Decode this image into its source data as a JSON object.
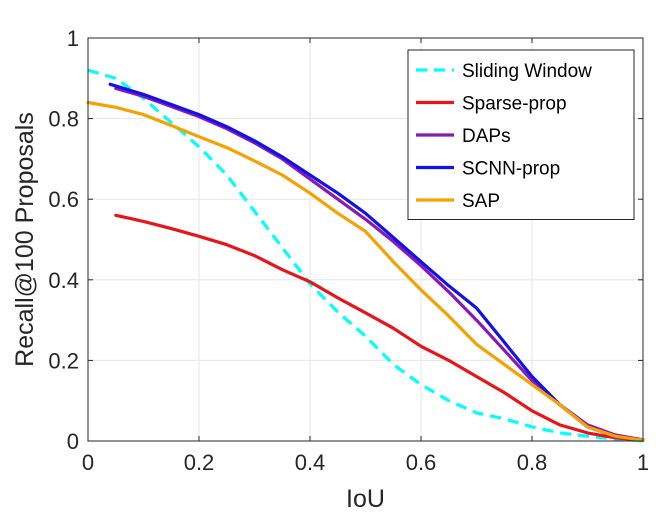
{
  "chart_data": {
    "type": "line",
    "title": "",
    "xlabel": "IoU",
    "ylabel": "Recall@100 Proposals",
    "xlim": [
      0,
      1
    ],
    "ylim": [
      0,
      1
    ],
    "xticks": [
      0,
      0.2,
      0.4,
      0.6,
      0.8,
      1
    ],
    "yticks": [
      0,
      0.2,
      0.4,
      0.6,
      0.8,
      1
    ],
    "xtick_labels": [
      "0",
      "0.2",
      "0.4",
      "0.6",
      "0.8",
      "1"
    ],
    "ytick_labels": [
      "0",
      "0.2",
      "0.4",
      "0.6",
      "0.8",
      "1"
    ],
    "grid": true,
    "legend_position": "top-right",
    "series": [
      {
        "name": "Sliding Window",
        "color": "#00FFFF",
        "dash": "dashed",
        "x": [
          0,
          0.05,
          0.1,
          0.15,
          0.2,
          0.25,
          0.3,
          0.35,
          0.4,
          0.45,
          0.5,
          0.55,
          0.6,
          0.65,
          0.7,
          0.75,
          0.8,
          0.85,
          0.9,
          0.95,
          1.0
        ],
        "y": [
          0.92,
          0.9,
          0.85,
          0.79,
          0.73,
          0.66,
          0.57,
          0.48,
          0.39,
          0.32,
          0.26,
          0.19,
          0.14,
          0.1,
          0.07,
          0.055,
          0.035,
          0.02,
          0.012,
          0.005,
          0.0
        ]
      },
      {
        "name": "Sparse-prop",
        "color": "#E8141A",
        "dash": "solid",
        "x": [
          0.05,
          0.1,
          0.15,
          0.2,
          0.25,
          0.3,
          0.35,
          0.4,
          0.45,
          0.5,
          0.55,
          0.6,
          0.65,
          0.7,
          0.75,
          0.8,
          0.85,
          0.9,
          0.95,
          1.0
        ],
        "y": [
          0.56,
          0.545,
          0.527,
          0.508,
          0.487,
          0.46,
          0.425,
          0.395,
          0.355,
          0.318,
          0.28,
          0.235,
          0.2,
          0.16,
          0.12,
          0.075,
          0.04,
          0.02,
          0.008,
          0.002
        ]
      },
      {
        "name": "DAPs",
        "color": "#8A18B5",
        "dash": "solid",
        "x": [
          0.05,
          0.1,
          0.15,
          0.2,
          0.25,
          0.3,
          0.35,
          0.4,
          0.45,
          0.5,
          0.55,
          0.6,
          0.65,
          0.7,
          0.75,
          0.8,
          0.85,
          0.9,
          0.95,
          1.0
        ],
        "y": [
          0.875,
          0.855,
          0.83,
          0.805,
          0.775,
          0.74,
          0.7,
          0.65,
          0.6,
          0.55,
          0.495,
          0.435,
          0.37,
          0.3,
          0.225,
          0.15,
          0.09,
          0.04,
          0.015,
          0.003
        ]
      },
      {
        "name": "SCNN-prop",
        "color": "#1212E8",
        "dash": "solid",
        "x": [
          0.04,
          0.1,
          0.15,
          0.2,
          0.25,
          0.3,
          0.35,
          0.4,
          0.45,
          0.5,
          0.55,
          0.6,
          0.65,
          0.7,
          0.75,
          0.8,
          0.85,
          0.9,
          0.95,
          1.0
        ],
        "y": [
          0.885,
          0.86,
          0.835,
          0.81,
          0.78,
          0.745,
          0.705,
          0.66,
          0.615,
          0.565,
          0.505,
          0.445,
          0.385,
          0.33,
          0.245,
          0.16,
          0.09,
          0.035,
          0.012,
          0.002
        ]
      },
      {
        "name": "SAP",
        "color": "#F5A200",
        "dash": "solid",
        "x": [
          0,
          0.05,
          0.1,
          0.15,
          0.2,
          0.25,
          0.3,
          0.35,
          0.4,
          0.45,
          0.5,
          0.55,
          0.6,
          0.65,
          0.7,
          0.75,
          0.8,
          0.85,
          0.9,
          0.95,
          1.0
        ],
        "y": [
          0.84,
          0.828,
          0.81,
          0.783,
          0.755,
          0.728,
          0.695,
          0.66,
          0.615,
          0.565,
          0.52,
          0.445,
          0.375,
          0.31,
          0.24,
          0.19,
          0.14,
          0.09,
          0.035,
          0.012,
          0.002
        ]
      }
    ]
  }
}
